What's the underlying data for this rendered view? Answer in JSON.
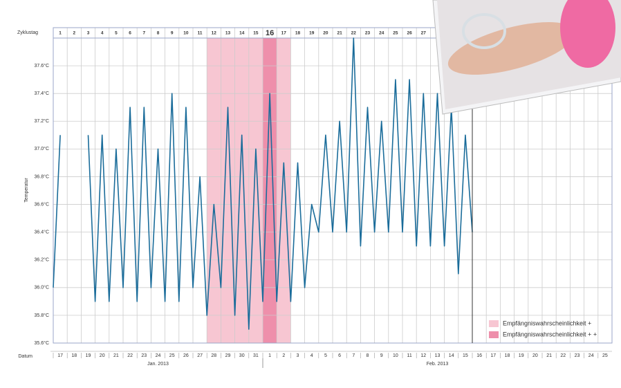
{
  "chart_data": {
    "type": "line",
    "y_label": "Temperatur",
    "cycle_label": "Zyklustag",
    "date_label": "Datum",
    "cycle_days": [
      "1",
      "2",
      "3",
      "4",
      "5",
      "6",
      "7",
      "8",
      "9",
      "10",
      "11",
      "12",
      "13",
      "14",
      "15",
      "16",
      "17",
      "18",
      "19",
      "20",
      "21",
      "22",
      "23",
      "24",
      "25",
      "26",
      "27"
    ],
    "highlight_day": 16,
    "categories": [
      "17",
      "18",
      "19",
      "20",
      "21",
      "22",
      "23",
      "24",
      "25",
      "26",
      "27",
      "28",
      "29",
      "30",
      "31",
      "1",
      "2",
      "3",
      "4",
      "5",
      "6",
      "7",
      "8",
      "9",
      "10",
      "11",
      "12",
      "13",
      "14",
      "15",
      "16",
      "17",
      "18",
      "19",
      "20",
      "21",
      "22",
      "23",
      "24",
      "25"
    ],
    "months": [
      {
        "label": "Jan. 2013",
        "from": 0,
        "to": 15
      },
      {
        "label": "Feb. 2013",
        "from": 15,
        "to": 40
      }
    ],
    "xlim": [
      0,
      40
    ],
    "ylim": [
      35.6,
      37.8
    ],
    "yticks": [
      {
        "value": 35.6,
        "label": "35.6°C"
      },
      {
        "value": 35.8,
        "label": "35.8°C"
      },
      {
        "value": 36.0,
        "label": "36.0°C"
      },
      {
        "value": 36.2,
        "label": "36.2°C"
      },
      {
        "value": 36.4,
        "label": "36.4°C"
      },
      {
        "value": 36.6,
        "label": "36.6°C"
      },
      {
        "value": 36.8,
        "label": "36.8°C"
      },
      {
        "value": 37.0,
        "label": "37.0°C"
      },
      {
        "value": 37.2,
        "label": "37.2°C"
      },
      {
        "value": 37.4,
        "label": "37.4°C"
      },
      {
        "value": 37.6,
        "label": "37.6°C"
      }
    ],
    "bands": [
      {
        "name": "Empfängniswahrscheinlichkeit +",
        "color": "#f7c6d2",
        "from": 12,
        "to": 17
      },
      {
        "name": "Empfängniswahrscheinlichkeit + +",
        "color": "#ee8fab",
        "from": 16,
        "to": 16
      }
    ],
    "series": [
      {
        "color": "#1a6c9a",
        "x": [
          0,
          0.5,
          1,
          1.5,
          2,
          2.5,
          3,
          3.5,
          4,
          4.5,
          5,
          5.5,
          6,
          6.5,
          7,
          7.5,
          8,
          8.5,
          9,
          9.5,
          10,
          10.5,
          11,
          11.5,
          12,
          12.5,
          13,
          13.5,
          14,
          14.5,
          15,
          15.5,
          16,
          16.5,
          17,
          17.5,
          18,
          18.5,
          19,
          19.5,
          20,
          20.5,
          21,
          21.5,
          22,
          22.5,
          23,
          23.5,
          24,
          24.5,
          25,
          25.5,
          26,
          26.5,
          27,
          27.5,
          28,
          28.5,
          29,
          29.5,
          30
        ],
        "values": [
          36.0,
          37.1,
          null,
          null,
          null,
          37.1,
          35.9,
          37.1,
          35.9,
          37.0,
          36.0,
          37.3,
          35.9,
          37.3,
          36.0,
          37.0,
          35.9,
          37.4,
          35.9,
          37.3,
          36.0,
          36.8,
          35.8,
          36.6,
          36.0,
          37.3,
          35.8,
          37.1,
          35.7,
          37.0,
          35.9,
          37.4,
          35.9,
          36.9,
          35.9,
          36.9,
          36.0,
          36.6,
          36.4,
          37.1,
          36.4,
          37.2,
          36.4,
          37.8,
          36.3,
          37.3,
          36.4,
          37.2,
          36.4,
          37.5,
          36.4,
          37.5,
          36.3,
          37.4,
          36.3,
          37.4,
          36.3,
          37.3,
          36.1,
          37.1,
          36.4
        ]
      }
    ]
  }
}
